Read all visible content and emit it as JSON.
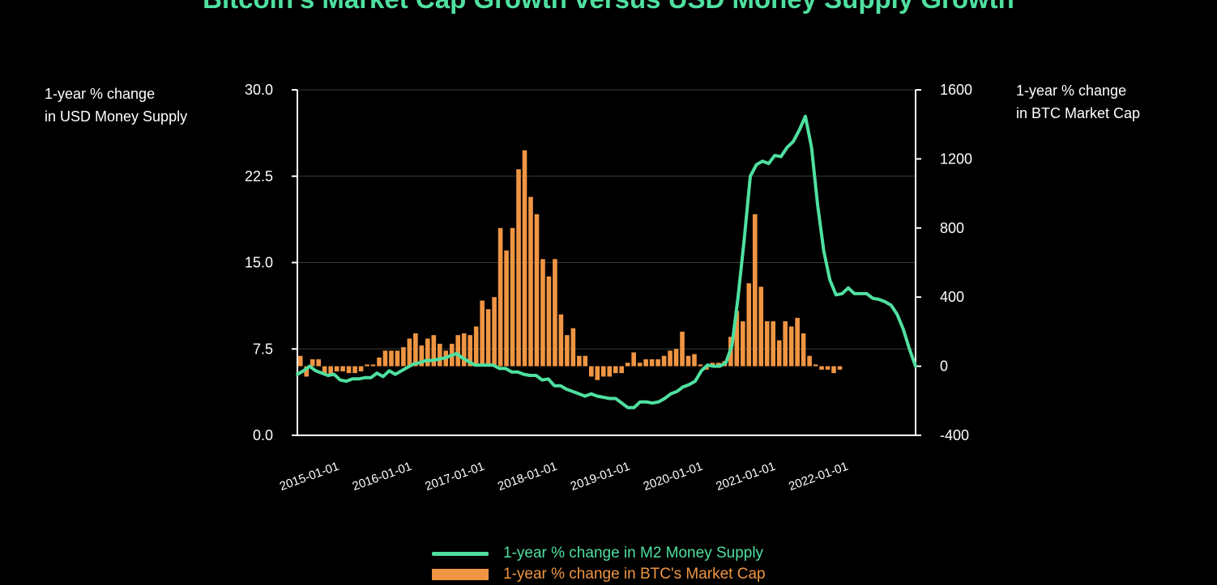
{
  "chart_data": {
    "type": "bar+line",
    "title": "Bitcoin's Market Cap Growth versus USD Money Supply Growth",
    "y_left_label": [
      "1-year % change",
      "in USD Money Supply"
    ],
    "y_right_label": [
      "1-year % change",
      "in BTC Market Cap"
    ],
    "y_left_range": [
      0,
      30
    ],
    "y_right_range": [
      -400,
      1600
    ],
    "y_left_ticks": [
      "0.0",
      "7.5",
      "15.0",
      "22.5",
      "30.0"
    ],
    "y_right_ticks": [
      "-400",
      "0",
      "400",
      "800",
      "1200",
      "1600"
    ],
    "x_start": "2014-06-01",
    "x_labels": [
      "2015-01-01",
      "2016-01-01",
      "2017-01-01",
      "2018-01-01",
      "2019-01-01",
      "2020-01-01",
      "2021-01-01",
      "2022-01-01"
    ],
    "series": [
      {
        "name": "1-year % change in M2 Money Supply",
        "type": "line",
        "axis": "left",
        "color": "#4fe0a0",
        "values": [
          5.3,
          5.6,
          6.0,
          5.6,
          5.4,
          5.2,
          5.3,
          4.8,
          4.7,
          4.9,
          4.9,
          5.0,
          5.0,
          5.4,
          5.1,
          5.6,
          5.3,
          5.6,
          5.9,
          6.2,
          6.3,
          6.5,
          6.5,
          6.6,
          6.7,
          6.9,
          7.1,
          6.7,
          6.4,
          6.1,
          6.1,
          6.1,
          6.1,
          5.8,
          5.8,
          5.5,
          5.5,
          5.3,
          5.2,
          5.2,
          4.8,
          4.9,
          4.3,
          4.3,
          4.0,
          3.8,
          3.6,
          3.4,
          3.6,
          3.4,
          3.3,
          3.2,
          3.2,
          2.8,
          2.4,
          2.4,
          2.9,
          2.9,
          2.8,
          2.9,
          3.2,
          3.6,
          3.8,
          4.2,
          4.4,
          4.7,
          5.6,
          6.1,
          6.0,
          6.0,
          6.3,
          7.8,
          12.0,
          17.0,
          22.5,
          23.5,
          23.8,
          23.6,
          24.3,
          24.2,
          25.0,
          25.5,
          26.5,
          27.7,
          25.0,
          20.0,
          16.0,
          13.5,
          12.2,
          12.3,
          12.8,
          12.3,
          12.3,
          12.3,
          11.9,
          11.8,
          11.6,
          11.3,
          10.5,
          9.2,
          7.5,
          6.0
        ]
      },
      {
        "name": "1-year % change in BTC's Market Cap",
        "type": "bar",
        "axis": "right",
        "color": "#f09543",
        "values": [
          60,
          -60,
          40,
          40,
          -40,
          -50,
          -30,
          -30,
          -40,
          -40,
          -30,
          10,
          10,
          50,
          90,
          90,
          90,
          110,
          160,
          190,
          120,
          160,
          180,
          130,
          90,
          130,
          180,
          190,
          180,
          230,
          380,
          330,
          400,
          800,
          670,
          800,
          1140,
          1250,
          980,
          880,
          620,
          520,
          620,
          300,
          180,
          220,
          60,
          60,
          -60,
          -80,
          -60,
          -60,
          -40,
          -40,
          20,
          80,
          20,
          40,
          40,
          40,
          60,
          90,
          100,
          200,
          60,
          70,
          10,
          -20,
          20,
          20,
          30,
          170,
          320,
          260,
          480,
          880,
          460,
          260,
          260,
          150,
          260,
          230,
          280,
          190,
          60,
          10,
          -20,
          -20,
          -40,
          -20
        ]
      }
    ]
  },
  "legend": {
    "line_label": "1-year % change in M2 Money Supply",
    "bar_label": "1-year % change in BTC's Market Cap"
  }
}
